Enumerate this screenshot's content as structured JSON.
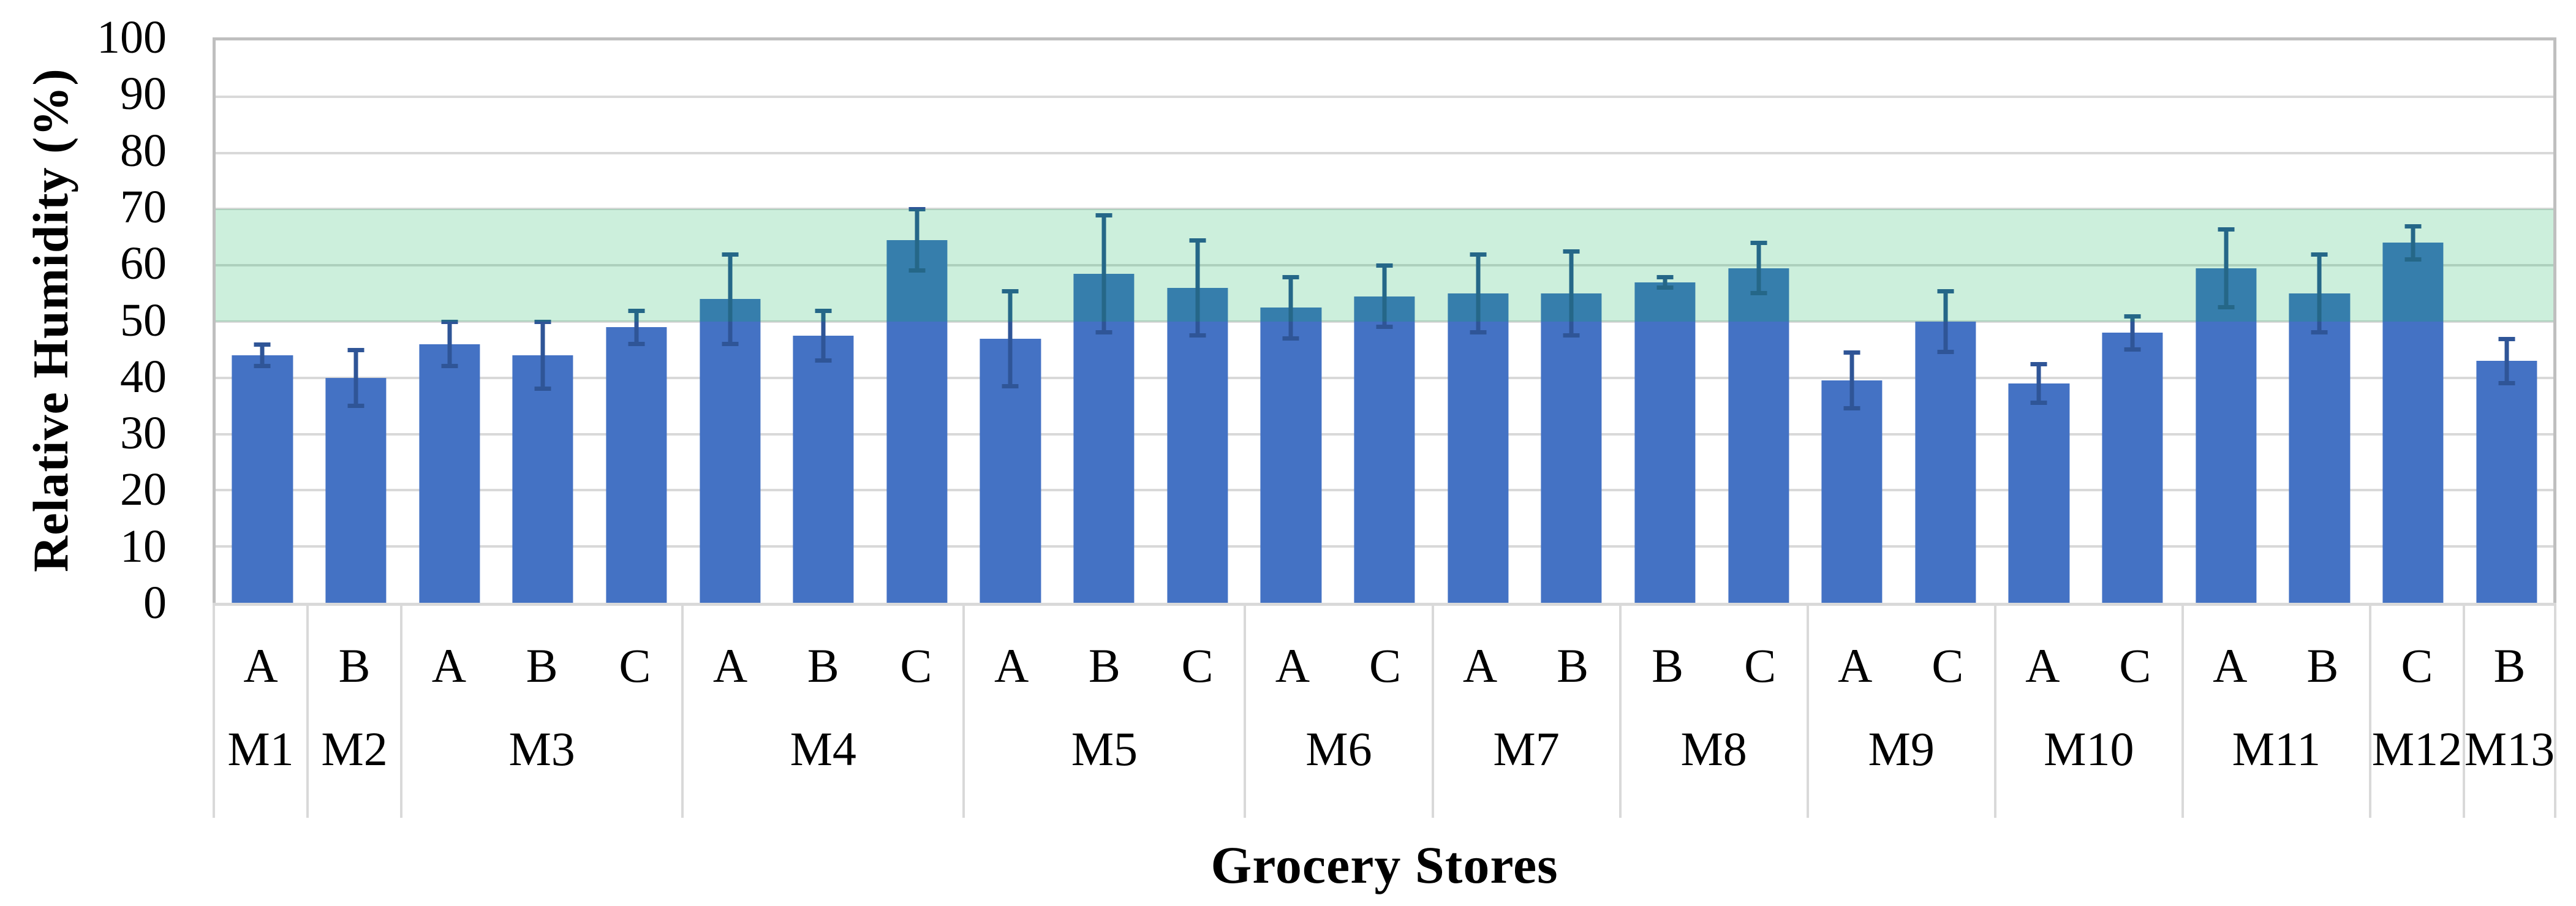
{
  "chart_data": {
    "type": "bar",
    "title": "",
    "xlabel": "Grocery Stores",
    "ylabel": "Relative Humidity (%)",
    "ylim": [
      0,
      100
    ],
    "ytick_step": 10,
    "yticks": [
      0,
      10,
      20,
      30,
      40,
      50,
      60,
      70,
      80,
      90,
      100
    ],
    "grid": true,
    "legend": null,
    "error_bars": true,
    "reference_band": {
      "low": 50,
      "high": 70,
      "fill": "#00B050",
      "opacity": 0.2
    },
    "groups": [
      {
        "store": "M1",
        "bars": [
          {
            "sensor": "A",
            "value": 44,
            "error": 2
          }
        ]
      },
      {
        "store": "M2",
        "bars": [
          {
            "sensor": "B",
            "value": 40,
            "error": 5
          }
        ]
      },
      {
        "store": "M3",
        "bars": [
          {
            "sensor": "A",
            "value": 46,
            "error": 4
          },
          {
            "sensor": "B",
            "value": 44,
            "error": 6
          },
          {
            "sensor": "C",
            "value": 49,
            "error": 3
          }
        ]
      },
      {
        "store": "M4",
        "bars": [
          {
            "sensor": "A",
            "value": 54,
            "error": 8
          },
          {
            "sensor": "B",
            "value": 47.5,
            "error": 4.5
          },
          {
            "sensor": "C",
            "value": 64.5,
            "error": 5.5
          }
        ]
      },
      {
        "store": "M5",
        "bars": [
          {
            "sensor": "A",
            "value": 47,
            "error": 8.5
          },
          {
            "sensor": "B",
            "value": 58.5,
            "error": 10.5
          },
          {
            "sensor": "C",
            "value": 56,
            "error": 8.5
          }
        ]
      },
      {
        "store": "M6",
        "bars": [
          {
            "sensor": "A",
            "value": 52.5,
            "error": 5.5
          },
          {
            "sensor": "C",
            "value": 54.5,
            "error": 5.5
          }
        ]
      },
      {
        "store": "M7",
        "bars": [
          {
            "sensor": "A",
            "value": 55,
            "error": 7
          },
          {
            "sensor": "B",
            "value": 55,
            "error": 7.5
          }
        ]
      },
      {
        "store": "M8",
        "bars": [
          {
            "sensor": "B",
            "value": 57,
            "error": 1
          },
          {
            "sensor": "C",
            "value": 59.5,
            "error": 4.5
          }
        ]
      },
      {
        "store": "M9",
        "bars": [
          {
            "sensor": "A",
            "value": 39.5,
            "error": 5
          },
          {
            "sensor": "C",
            "value": 50,
            "error": 5.5
          }
        ]
      },
      {
        "store": "M10",
        "bars": [
          {
            "sensor": "A",
            "value": 39,
            "error": 3.5
          },
          {
            "sensor": "C",
            "value": 48,
            "error": 3
          }
        ]
      },
      {
        "store": "M11",
        "bars": [
          {
            "sensor": "A",
            "value": 59.5,
            "error": 7
          },
          {
            "sensor": "B",
            "value": 55,
            "error": 7
          }
        ]
      },
      {
        "store": "M12",
        "bars": [
          {
            "sensor": "C",
            "value": 64,
            "error": 3
          }
        ]
      },
      {
        "store": "M13",
        "bars": [
          {
            "sensor": "B",
            "value": 43,
            "error": 4
          }
        ]
      }
    ],
    "colors": {
      "bar_fill": "#4472C4",
      "error_bar": "#2F5597",
      "gridline": "#D9D9D9",
      "plot_border": "#BFBFBF",
      "axis_table_line": "#D9D9D9",
      "band_fill": "#00B050",
      "text": "#000000",
      "background": "#FFFFFF"
    }
  }
}
